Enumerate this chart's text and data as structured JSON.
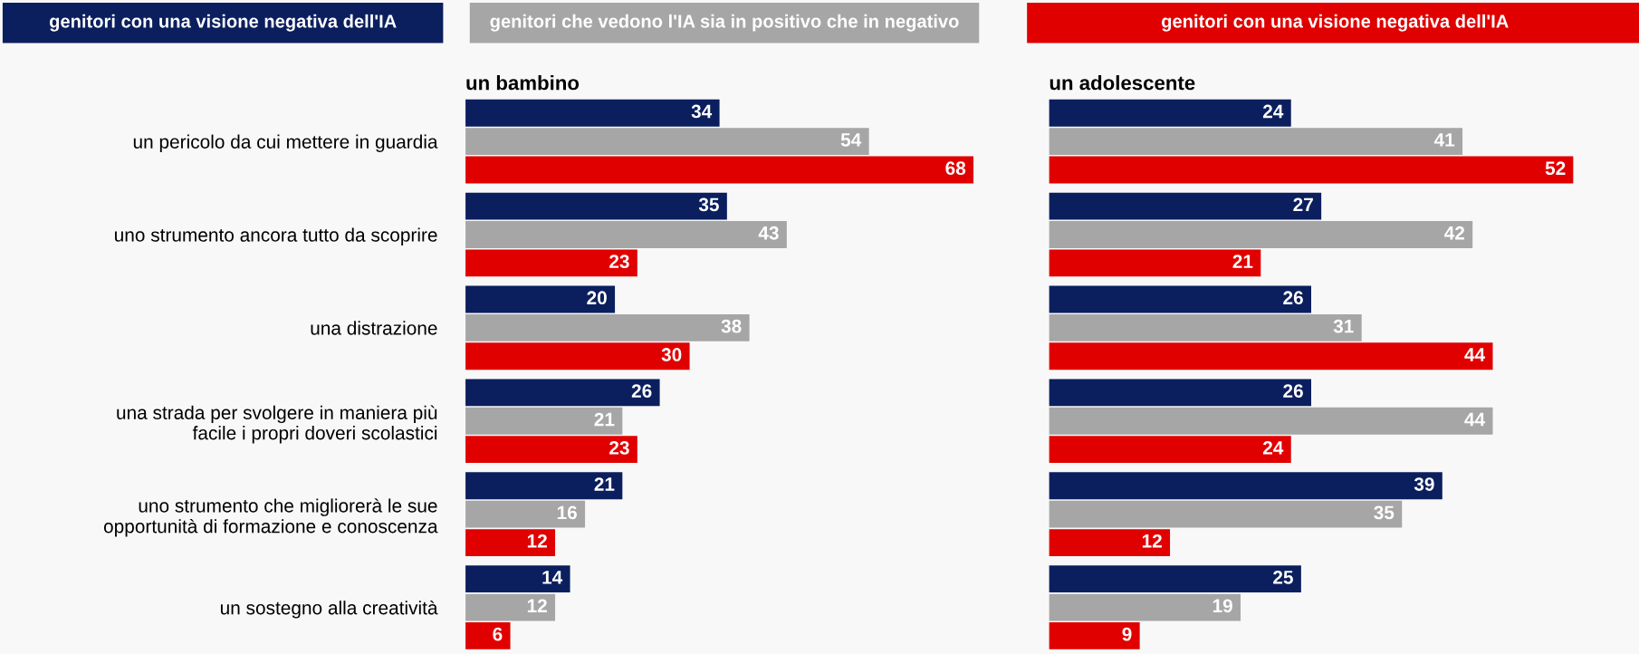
{
  "chart_data": [
    {
      "type": "bar",
      "orientation": "horizontal",
      "title": "un bambino",
      "data_labels": true,
      "legend": "top",
      "tick_labels": "y",
      "grid": false,
      "categories": [
        "un pericolo da cui mettere in guardia",
        "uno strumento ancora tutto da scoprire",
        "una distrazione",
        "una strada per svolgere in maniera più\nfacile i propri doveri scolastici",
        "uno strumento che migliorerà le sue\nopportunità di formazione e conoscenza",
        "un sostegno alla creatività"
      ],
      "series": [
        {
          "name": "genitori con una visione negativa dell'IA",
          "color": "#0b1f5e",
          "values": [
            34,
            35,
            20,
            26,
            21,
            14
          ]
        },
        {
          "name": "genitori che vedono l'IA sia in positivo che in negativo",
          "color": "#a6a6a6",
          "values": [
            54,
            43,
            38,
            21,
            16,
            12
          ]
        },
        {
          "name": "genitori con una visione negativa dell'IA",
          "color": "#e00000",
          "values": [
            68,
            23,
            30,
            23,
            12,
            6
          ]
        }
      ]
    },
    {
      "type": "bar",
      "orientation": "horizontal",
      "title": "un adolescente",
      "data_labels": true,
      "tick_labels": false,
      "grid": false,
      "categories": [
        null,
        null,
        null,
        null,
        null,
        null
      ],
      "series": [
        {
          "color": "#0b1f5e",
          "values": [
            24,
            27,
            26,
            26,
            39,
            25
          ]
        },
        {
          "color": "#a6a6a6",
          "values": [
            41,
            42,
            31,
            44,
            35,
            19
          ]
        },
        {
          "color": "#e00000",
          "values": [
            52,
            21,
            44,
            24,
            12,
            9
          ]
        }
      ]
    }
  ]
}
